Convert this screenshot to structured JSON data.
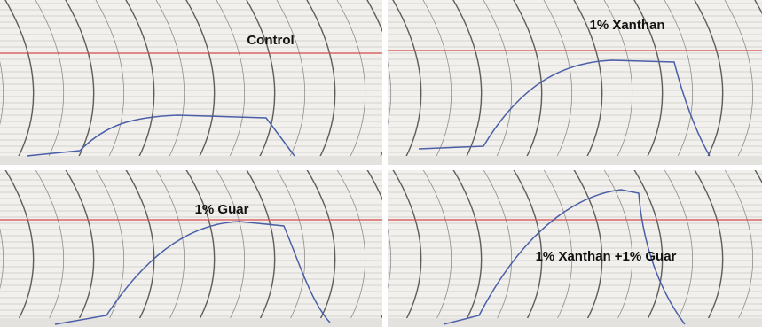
{
  "panels": [
    {
      "label": "Control"
    },
    {
      "label": "1% Xanthan"
    },
    {
      "label": "1% Guar"
    },
    {
      "label": "1% Xanthan +1% Guar"
    }
  ]
}
